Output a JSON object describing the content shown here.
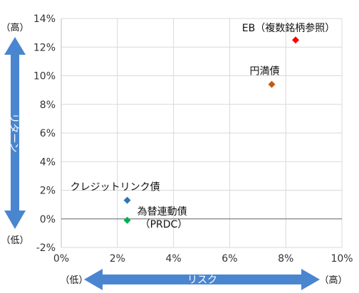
{
  "chart_data": {
    "type": "scatter",
    "title": "",
    "xlabel": "リスク",
    "ylabel": "リターン",
    "x_unit": "%",
    "y_unit": "%",
    "xlim": [
      0,
      10
    ],
    "ylim": [
      -2,
      14
    ],
    "x_ticks": [
      "0%",
      "2%",
      "4%",
      "6%",
      "8%",
      "10%"
    ],
    "y_ticks": [
      "14%",
      "12%",
      "10%",
      "8%",
      "6%",
      "4%",
      "2%",
      "0%",
      "-2%"
    ],
    "grid": true,
    "points": [
      {
        "label": "EB（複数銘柄参照）",
        "x": 8.35,
        "y": 12.5,
        "color": "#ff0000"
      },
      {
        "label": "円満債",
        "x": 7.5,
        "y": 9.4,
        "color": "#c55a11"
      },
      {
        "label": "クレジットリンク債",
        "x": 2.35,
        "y": 1.3,
        "color": "#2e75b6"
      },
      {
        "label": "為替連動債",
        "label_line2": "（PRDC）",
        "x": 2.35,
        "y": -0.1,
        "color": "#00b050"
      }
    ],
    "arrow_color": "#4a86d0",
    "y_arrow": {
      "top_label": "（高）",
      "bottom_label": "（低）"
    },
    "x_arrow": {
      "left_label": "（低）",
      "right_label": "（高）"
    }
  }
}
